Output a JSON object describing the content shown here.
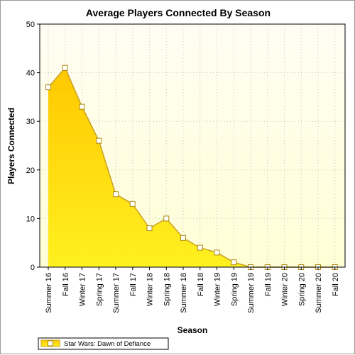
{
  "chart_data": {
    "type": "area",
    "title": "Average Players Connected By Season",
    "xlabel": "Season",
    "ylabel": "Players Connected",
    "ylim": [
      0,
      50
    ],
    "yticks": [
      0,
      10,
      20,
      30,
      40,
      50
    ],
    "grid": true,
    "legend_position": "bottom-left",
    "categories": [
      "Summer 16",
      "Fall 16",
      "Winter 17",
      "Spring 17",
      "Summer 17",
      "Fall 17",
      "Winter 18",
      "Spring 18",
      "Summer 18",
      "Fall 18",
      "Winter 19",
      "Spring 19",
      "Summer 19",
      "Fall 19",
      "Winter 20",
      "Spring 20",
      "Summer 20",
      "Fall 20"
    ],
    "series": [
      {
        "name": "Star Wars: Dawn of Defiance",
        "values": [
          37,
          41,
          33,
          26,
          15,
          13,
          8,
          10,
          6,
          4,
          3,
          1,
          0,
          0,
          0,
          0,
          0,
          0
        ],
        "color": "#ffd700"
      }
    ]
  },
  "colors": {
    "plot_background_top": "#fffdf0",
    "plot_background_bottom": "#ffffe0",
    "area_top": "#ffcc00",
    "area_bottom": "#ffee22",
    "line": "#c8a020",
    "marker_fill": "#ffffff"
  }
}
